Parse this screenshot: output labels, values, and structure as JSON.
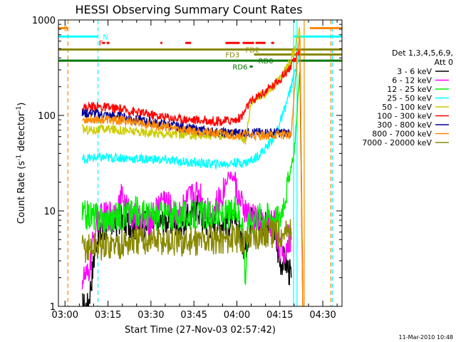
{
  "chart_data": {
    "type": "line",
    "title": "HESSI Observing Summary Count Rates",
    "xlabel": "Start Time (27-Nov-03 02:57:42)",
    "ylabel_main": "Count Rate (s",
    "ylabel_sup1": "-1",
    "ylabel_mid": " detector",
    "ylabel_sup2": "-1",
    "ylabel_end": ")",
    "y_scale": "log",
    "ylim": [
      1,
      1000
    ],
    "xlim_minutes": [
      177.7,
      276.7
    ],
    "x_ticks": [
      {
        "minute": 180,
        "label": "03:00"
      },
      {
        "minute": 195,
        "label": "03:15"
      },
      {
        "minute": 210,
        "label": "03:30"
      },
      {
        "minute": 225,
        "label": "03:45"
      },
      {
        "minute": 240,
        "label": "04:00"
      },
      {
        "minute": 255,
        "label": "04:15"
      },
      {
        "minute": 270,
        "label": "04:30"
      }
    ],
    "y_ticks": [
      {
        "value": 1,
        "label": "1"
      },
      {
        "value": 10,
        "label": "10"
      },
      {
        "value": 100,
        "label": "100"
      },
      {
        "value": 1000,
        "label": "1000"
      }
    ],
    "legend_title": [
      "Det 1,3,4,5,6,9,",
      "Att 0"
    ],
    "legend_placement": "right",
    "series": [
      {
        "name": "3 - 6 keV",
        "color": "#000000",
        "points": [
          [
            186,
            1
          ],
          [
            188,
            1
          ],
          [
            191,
            5
          ],
          [
            195,
            7
          ],
          [
            200,
            8
          ],
          [
            205,
            7
          ],
          [
            210,
            7
          ],
          [
            215,
            8
          ],
          [
            220,
            7
          ],
          [
            224,
            9
          ],
          [
            226,
            11
          ],
          [
            228,
            8
          ],
          [
            232,
            7
          ],
          [
            236,
            8
          ],
          [
            240,
            7
          ],
          [
            243,
            4
          ],
          [
            245,
            9
          ],
          [
            248,
            8
          ],
          [
            250,
            7
          ],
          [
            253,
            6
          ],
          [
            255,
            3
          ],
          [
            257,
            3
          ],
          [
            259,
            2
          ]
        ]
      },
      {
        "name": "6 - 12 keV",
        "color": "#ff00ff",
        "points": [
          [
            186,
            2
          ],
          [
            188,
            2
          ],
          [
            191,
            8
          ],
          [
            195,
            9
          ],
          [
            198,
            10
          ],
          [
            200,
            14
          ],
          [
            202,
            10
          ],
          [
            205,
            8
          ],
          [
            210,
            8
          ],
          [
            214,
            14
          ],
          [
            216,
            12
          ],
          [
            218,
            9
          ],
          [
            220,
            10
          ],
          [
            224,
            14
          ],
          [
            227,
            16
          ],
          [
            229,
            11
          ],
          [
            232,
            10
          ],
          [
            235,
            15
          ],
          [
            237,
            24
          ],
          [
            239,
            22
          ],
          [
            241,
            12
          ],
          [
            244,
            9
          ],
          [
            247,
            8
          ],
          [
            250,
            7
          ],
          [
            253,
            8
          ],
          [
            256,
            3
          ],
          [
            258,
            5
          ],
          [
            259,
            5
          ]
        ]
      },
      {
        "name": "12 - 25 keV",
        "color": "#00ee00",
        "points": [
          [
            186,
            9
          ],
          [
            190,
            9
          ],
          [
            195,
            8
          ],
          [
            200,
            9
          ],
          [
            205,
            10
          ],
          [
            210,
            9
          ],
          [
            215,
            9
          ],
          [
            220,
            9
          ],
          [
            225,
            9
          ],
          [
            230,
            9
          ],
          [
            235,
            9
          ],
          [
            240,
            10
          ],
          [
            242,
            8
          ],
          [
            243,
            2
          ],
          [
            244,
            8
          ],
          [
            247,
            9
          ],
          [
            250,
            9
          ],
          [
            253,
            9
          ],
          [
            255,
            8
          ],
          [
            256,
            12
          ],
          [
            258,
            20
          ],
          [
            260,
            40
          ],
          [
            262,
            300
          ],
          [
            263,
            1
          ]
        ]
      },
      {
        "name": "25 - 50 keV",
        "color": "#00ffff",
        "points": [
          [
            186,
            35
          ],
          [
            190,
            36
          ],
          [
            195,
            36
          ],
          [
            200,
            36
          ],
          [
            205,
            35
          ],
          [
            210,
            35
          ],
          [
            215,
            34
          ],
          [
            220,
            33
          ],
          [
            225,
            32
          ],
          [
            230,
            31
          ],
          [
            235,
            31
          ],
          [
            240,
            32
          ],
          [
            243,
            32
          ],
          [
            246,
            35
          ],
          [
            250,
            45
          ],
          [
            253,
            60
          ],
          [
            256,
            100
          ],
          [
            259,
            200
          ],
          [
            261,
            350
          ],
          [
            262,
            500
          ]
        ]
      },
      {
        "name": "50 - 100 keV",
        "color": "#cccc00",
        "points": [
          [
            186,
            72
          ],
          [
            190,
            70
          ],
          [
            195,
            72
          ],
          [
            200,
            70
          ],
          [
            205,
            67
          ],
          [
            210,
            66
          ],
          [
            215,
            64
          ],
          [
            220,
            63
          ],
          [
            225,
            62
          ],
          [
            230,
            62
          ],
          [
            235,
            62
          ],
          [
            240,
            65
          ],
          [
            243,
            55
          ],
          [
            245,
            140
          ],
          [
            248,
            160
          ],
          [
            251,
            180
          ],
          [
            254,
            220
          ],
          [
            257,
            300
          ],
          [
            259,
            400
          ],
          [
            261,
            600
          ],
          [
            262,
            800
          ],
          [
            263,
            1
          ]
        ]
      },
      {
        "name": "100 - 300 keV",
        "color": "#ff0000",
        "points": [
          [
            186,
            120
          ],
          [
            190,
            125
          ],
          [
            195,
            120
          ],
          [
            200,
            115
          ],
          [
            205,
            108
          ],
          [
            210,
            102
          ],
          [
            215,
            96
          ],
          [
            220,
            92
          ],
          [
            225,
            90
          ],
          [
            230,
            88
          ],
          [
            235,
            87
          ],
          [
            240,
            90
          ],
          [
            242,
            100
          ],
          [
            244,
            130
          ],
          [
            247,
            155
          ],
          [
            250,
            180
          ],
          [
            253,
            210
          ],
          [
            256,
            260
          ],
          [
            259,
            330
          ],
          [
            261,
            420
          ],
          [
            262,
            500
          ],
          [
            263,
            1
          ]
        ]
      },
      {
        "name": "300 - 800 keV",
        "color": "#000099",
        "points": [
          [
            186,
            105
          ],
          [
            190,
            105
          ],
          [
            195,
            100
          ],
          [
            200,
            97
          ],
          [
            205,
            90
          ],
          [
            210,
            85
          ],
          [
            215,
            80
          ],
          [
            220,
            76
          ],
          [
            225,
            72
          ],
          [
            230,
            68
          ],
          [
            235,
            66
          ],
          [
            240,
            66
          ],
          [
            245,
            66
          ],
          [
            250,
            66
          ],
          [
            255,
            66
          ],
          [
            259,
            66
          ]
        ]
      },
      {
        "name": "800 - 7000 keV",
        "color": "#ff8800",
        "points": [
          [
            186,
            90
          ],
          [
            190,
            92
          ],
          [
            195,
            90
          ],
          [
            200,
            88
          ],
          [
            205,
            85
          ],
          [
            210,
            80
          ],
          [
            215,
            76
          ],
          [
            220,
            72
          ],
          [
            225,
            69
          ],
          [
            230,
            66
          ],
          [
            235,
            64
          ],
          [
            240,
            63
          ],
          [
            245,
            62
          ],
          [
            250,
            62
          ],
          [
            255,
            63
          ],
          [
            259,
            63
          ],
          [
            261,
            400
          ],
          [
            262,
            700
          ],
          [
            263,
            1
          ]
        ]
      },
      {
        "name": "7000 - 20000 keV",
        "color": "#888800",
        "points": [
          [
            186,
            4
          ],
          [
            190,
            4.2
          ],
          [
            195,
            4.4
          ],
          [
            200,
            4.5
          ],
          [
            205,
            4.8
          ],
          [
            210,
            5
          ],
          [
            215,
            4.8
          ],
          [
            220,
            4.6
          ],
          [
            225,
            4.8
          ],
          [
            230,
            5
          ],
          [
            235,
            5
          ],
          [
            240,
            5.2
          ],
          [
            242,
            5
          ],
          [
            245,
            5.5
          ],
          [
            250,
            5.8
          ],
          [
            255,
            6
          ],
          [
            259,
            6
          ]
        ]
      }
    ],
    "flags": [
      {
        "label": "S",
        "color": "#ff8800",
        "segments": [
          [
            177.7,
            181
          ],
          [
            265.5,
            276.7
          ]
        ],
        "value": 820
      },
      {
        "label": "N",
        "color": "#00ffff",
        "segments": [
          [
            177.7,
            191.5
          ],
          [
            259.8,
            276.7
          ]
        ],
        "value": 670
      },
      {
        "label": "F",
        "color": "#ff0000",
        "segments": [
          [
            193,
            194
          ],
          [
            194.5,
            195.5
          ],
          [
            213.3,
            214
          ],
          [
            222,
            224
          ],
          [
            236,
            241
          ],
          [
            242,
            246
          ],
          [
            246.5,
            250
          ],
          [
            252,
            253
          ]
        ],
        "value": 575
      },
      {
        "label": "FD2",
        "color": "#888800",
        "segments": [
          [
            177.7,
            276.7
          ]
        ],
        "value": 490
      },
      {
        "label": "FD3",
        "color": "#888800",
        "segments": [
          [
            246,
            276.7
          ]
        ],
        "value": 435
      },
      {
        "label": "RD0",
        "color": "#007700",
        "segments": [
          [
            177.7,
            276.7
          ]
        ],
        "value": 375
      },
      {
        "label": "RD6",
        "color": "#007700",
        "segments": [
          [
            244.5,
            245.5
          ]
        ],
        "value": 325
      }
    ],
    "vertical_lines": [
      {
        "minute": 181,
        "color": "#ff8800",
        "style": "dashed"
      },
      {
        "minute": 191.5,
        "color": "#00ffff",
        "style": "dashed"
      },
      {
        "minute": 259.8,
        "color": "#00ffff",
        "style": "solid"
      },
      {
        "minute": 261,
        "color": "#00ffff",
        "style": "solid"
      },
      {
        "minute": 263.5,
        "color": "#ff8800",
        "style": "solid"
      },
      {
        "minute": 272.8,
        "color": "#ff8800",
        "style": "dashed"
      },
      {
        "minute": 273.3,
        "color": "#00ffff",
        "style": "dashed"
      }
    ]
  },
  "timestamp": "11-Mar-2010 10:48"
}
